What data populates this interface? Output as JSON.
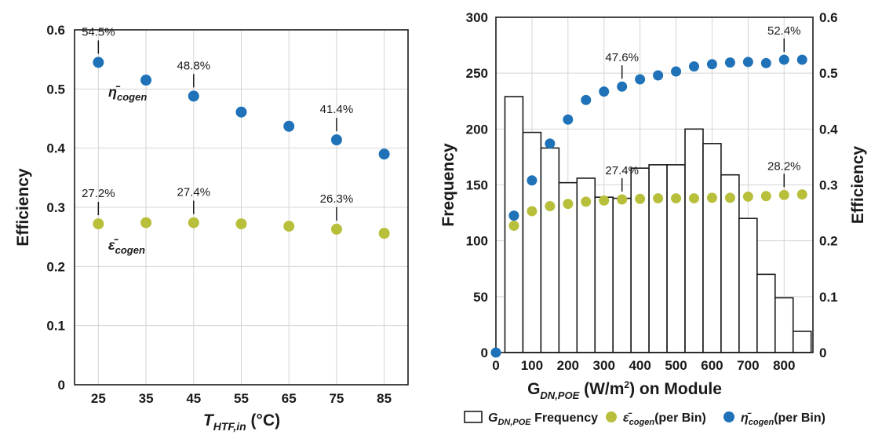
{
  "chart_data": [
    {
      "type": "scatter",
      "ylabel": "Efficiency",
      "xlabel_main": "T",
      "xlabel_sub": "HTF,in",
      "xlabel_unit": " (°C)",
      "ylim": [
        0,
        0.6
      ],
      "yticks": [
        "0",
        "0.1",
        "0.2",
        "0.3",
        "0.4",
        "0.5",
        "0.6"
      ],
      "x": [
        25,
        35,
        45,
        55,
        65,
        75,
        85
      ],
      "xticks": [
        "25",
        "35",
        "45",
        "55",
        "65",
        "75",
        "85"
      ],
      "grid": true,
      "series": [
        {
          "label_main": "η̄",
          "label_sub": "cogen",
          "color": "#1f72b8",
          "values": [
            0.545,
            0.515,
            0.488,
            0.461,
            0.437,
            0.414,
            0.39
          ]
        },
        {
          "label_main": "ε̄",
          "label_sub": "cogen",
          "color": "#b8bf3a",
          "values": [
            0.272,
            0.274,
            0.274,
            0.272,
            0.268,
            0.263,
            0.256
          ]
        }
      ],
      "annotations": [
        {
          "text": "54.5%",
          "x": 25,
          "series": 0
        },
        {
          "text": "48.8%",
          "x": 45,
          "series": 0
        },
        {
          "text": "41.4%",
          "x": 75,
          "series": 0
        },
        {
          "text": "27.2%",
          "x": 25,
          "series": 1
        },
        {
          "text": "27.4%",
          "x": 45,
          "series": 1
        },
        {
          "text": "26.3%",
          "x": 75,
          "series": 1
        }
      ]
    },
    {
      "type": "bar",
      "ylabel_left": "Frequency",
      "ylabel_right": "Efficiency",
      "xlabel_main": "G",
      "xlabel_sub": "DN,POE",
      "xlabel_unit": " (W/m",
      "xlabel_sup": "2",
      "xlabel_tail": ") on Module",
      "xlim": [
        0,
        880
      ],
      "xticks": [
        "0",
        "100",
        "200",
        "300",
        "400",
        "500",
        "600",
        "700",
        "800"
      ],
      "ylim_left": [
        0,
        300
      ],
      "yticks_left": [
        "0",
        "50",
        "100",
        "150",
        "200",
        "250",
        "300"
      ],
      "ylim_right": [
        0,
        0.6
      ],
      "yticks_right": [
        "0",
        "0.1",
        "0.2",
        "0.3",
        "0.4",
        "0.5",
        "0.6"
      ],
      "grid": true,
      "bins": [
        {
          "x": 50,
          "freq": 229
        },
        {
          "x": 100,
          "freq": 197
        },
        {
          "x": 150,
          "freq": 183
        },
        {
          "x": 200,
          "freq": 152
        },
        {
          "x": 250,
          "freq": 156
        },
        {
          "x": 300,
          "freq": 139
        },
        {
          "x": 350,
          "freq": 138
        },
        {
          "x": 400,
          "freq": 165
        },
        {
          "x": 450,
          "freq": 168
        },
        {
          "x": 500,
          "freq": 168
        },
        {
          "x": 550,
          "freq": 200
        },
        {
          "x": 600,
          "freq": 187
        },
        {
          "x": 650,
          "freq": 159
        },
        {
          "x": 700,
          "freq": 120
        },
        {
          "x": 750,
          "freq": 70
        },
        {
          "x": 800,
          "freq": 49
        },
        {
          "x": 850,
          "freq": 19
        }
      ],
      "eta_x": [
        0,
        50,
        100,
        150,
        200,
        250,
        300,
        350,
        400,
        450,
        500,
        550,
        600,
        650,
        700,
        750,
        800,
        850
      ],
      "eta_values": [
        0.0,
        0.245,
        0.308,
        0.374,
        0.417,
        0.452,
        0.467,
        0.476,
        0.489,
        0.496,
        0.503,
        0.512,
        0.516,
        0.519,
        0.52,
        0.518,
        0.524,
        0.524
      ],
      "eps_x": [
        50,
        100,
        150,
        200,
        250,
        300,
        350,
        400,
        450,
        500,
        550,
        600,
        650,
        700,
        750,
        800,
        850
      ],
      "eps_values": [
        0.227,
        0.253,
        0.262,
        0.266,
        0.27,
        0.272,
        0.274,
        0.275,
        0.276,
        0.276,
        0.276,
        0.277,
        0.277,
        0.279,
        0.28,
        0.282,
        0.283
      ],
      "eta_color": "#1f72b8",
      "eps_color": "#b8bf3a",
      "annotations": [
        {
          "text": "47.6%",
          "x": 350,
          "series": "eta"
        },
        {
          "text": "52.4%",
          "x": 800,
          "series": "eta"
        },
        {
          "text": "27.4%",
          "x": 350,
          "series": "eps"
        },
        {
          "text": "28.2%",
          "x": 800,
          "series": "eps"
        }
      ],
      "legend": [
        {
          "kind": "box",
          "main": "G",
          "sub": "DN,POE",
          "text": " Frequency"
        },
        {
          "kind": "dot",
          "color": "#b8bf3a",
          "main": "ε̄",
          "sub": "cogen",
          "text": "(per Bin)"
        },
        {
          "kind": "dot",
          "color": "#1f72b8",
          "main": "η̄",
          "sub": "cogen",
          "text": "(per Bin)"
        }
      ]
    }
  ]
}
